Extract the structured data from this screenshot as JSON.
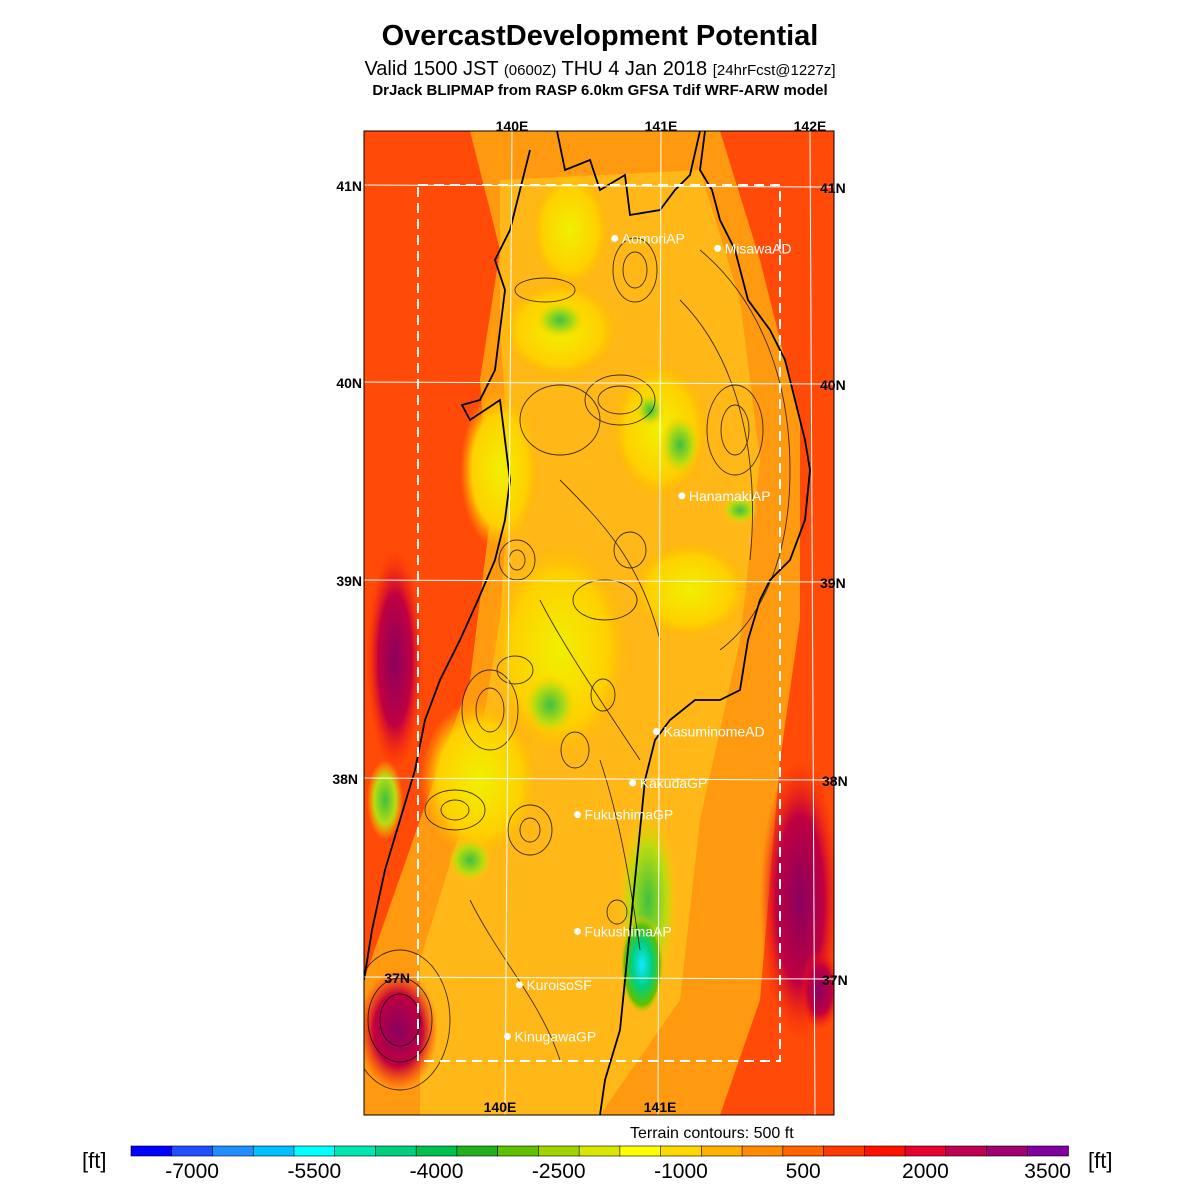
{
  "header": {
    "title": "OvercastDevelopment Potential",
    "valid_prefix": "Valid 1500 JST",
    "valid_zulu": "(0600Z)",
    "valid_date": "THU 4 Jan 2018",
    "forecast": "[24hrFcst@1227z]",
    "model": "DrJack BLIPMAP from RASP 6.0km GFSA Tdif WRF-ARW model"
  },
  "map": {
    "lon_labels_top": [
      "140E",
      "141E",
      "142E"
    ],
    "lon_labels_bottom": [
      "140E",
      "141E"
    ],
    "lat_labels_left": [
      "41N",
      "40N",
      "39N",
      "38N",
      "37N"
    ],
    "lat_labels_right": [
      "41N",
      "40N",
      "39N",
      "38N",
      "37N"
    ],
    "stations": [
      {
        "name": "AomoriAP",
        "lon": 140.69,
        "lat": 40.73
      },
      {
        "name": "MisawaAD",
        "lon": 141.38,
        "lat": 40.68
      },
      {
        "name": "HanamakiAP",
        "lon": 141.14,
        "lat": 39.43
      },
      {
        "name": "KasuminomeAD",
        "lon": 140.97,
        "lat": 38.24
      },
      {
        "name": "KakudaGP",
        "lon": 140.81,
        "lat": 37.98
      },
      {
        "name": "FukushimaGP",
        "lon": 140.44,
        "lat": 37.82
      },
      {
        "name": "FukushimaAP",
        "lon": 140.44,
        "lat": 37.23
      },
      {
        "name": "KuroisoSF",
        "lon": 140.05,
        "lat": 36.96
      },
      {
        "name": "KinugawaGP",
        "lon": 139.97,
        "lat": 36.7
      }
    ],
    "terrain_note": "Terrain contours: 500 ft"
  },
  "colorbar": {
    "unit": "[ft]",
    "tick_labels": [
      "-7000",
      "-5500",
      "-4000",
      "-2500",
      "-1000",
      "500",
      "2000",
      "3500"
    ],
    "colors": [
      "#0000ff",
      "#1f4fff",
      "#1f8fff",
      "#00bfff",
      "#00ffff",
      "#00e8b0",
      "#00d080",
      "#00c050",
      "#20b020",
      "#60c000",
      "#a0d400",
      "#d8e600",
      "#ffff00",
      "#ffd800",
      "#ffb000",
      "#ff8c00",
      "#ff6400",
      "#ff3a00",
      "#ff1000",
      "#e80030",
      "#c00050",
      "#a00070",
      "#8000a0"
    ]
  }
}
